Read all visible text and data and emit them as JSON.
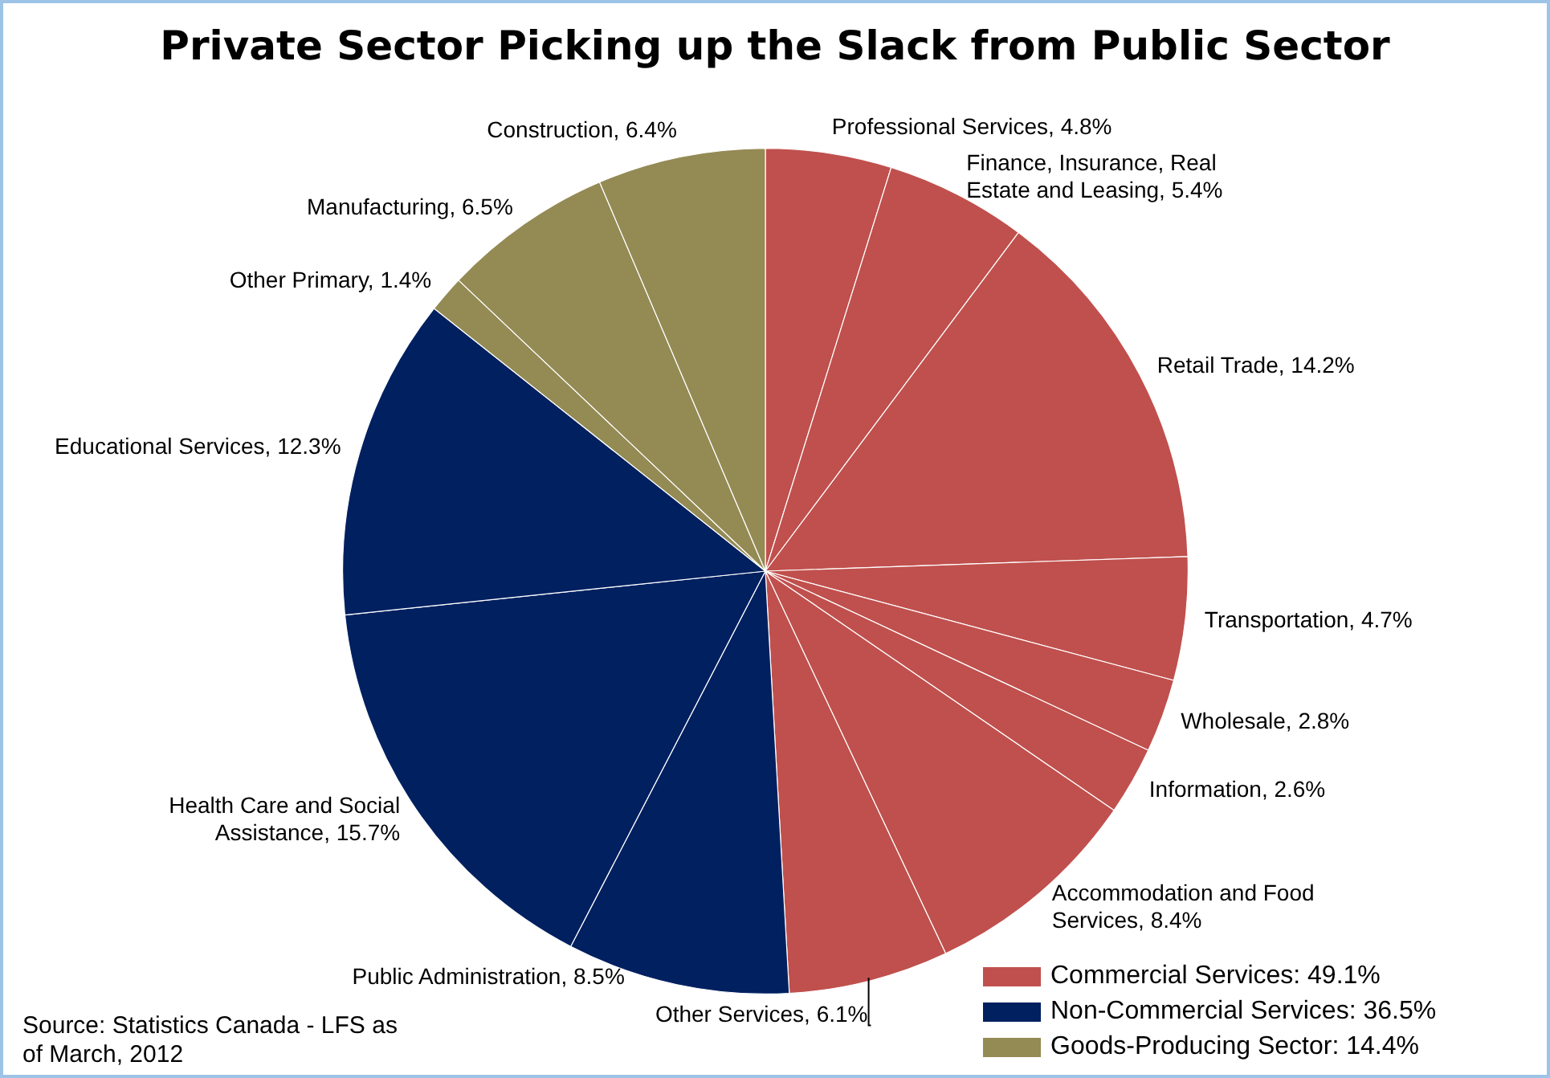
{
  "chart_data": {
    "type": "pie",
    "title": "Private Sector Picking up the Slack from Public Sector",
    "categories": [
      "Professional Services",
      "Finance, Insurance, Real Estate and Leasing",
      "Retail Trade",
      "Transportation",
      "Wholesale",
      "Information",
      "Accommodation and Food Services",
      "Other Services",
      "Public Administration",
      "Health Care and Social Assistance",
      "Educational Services",
      "Other Primary",
      "Manufacturing",
      "Construction"
    ],
    "values": [
      4.8,
      5.4,
      14.2,
      4.7,
      2.8,
      2.6,
      8.4,
      6.1,
      8.5,
      15.7,
      12.3,
      1.4,
      6.5,
      6.4
    ],
    "value_labels": [
      "4.8%",
      "5.4%",
      "14.2%",
      "4.7%",
      "2.8%",
      "2.6%",
      "8.4%",
      "6.1%",
      "8.5%",
      "15.7%",
      "12.3%",
      "1.4%",
      "6.5%",
      "6.4%"
    ],
    "colors": [
      "#c0504d",
      "#c0504d",
      "#c0504d",
      "#c0504d",
      "#c0504d",
      "#c0504d",
      "#c0504d",
      "#c0504d",
      "#002060",
      "#002060",
      "#002060",
      "#948a54",
      "#948a54",
      "#948a54"
    ],
    "annotations": [
      "Source: Statistics Canada - LFS as of March, 2012",
      "Commercial Services: 49.1%",
      "Non-Commercial Services: 36.5%",
      "Goods-Producing Sector: 14.4%"
    ]
  }
}
